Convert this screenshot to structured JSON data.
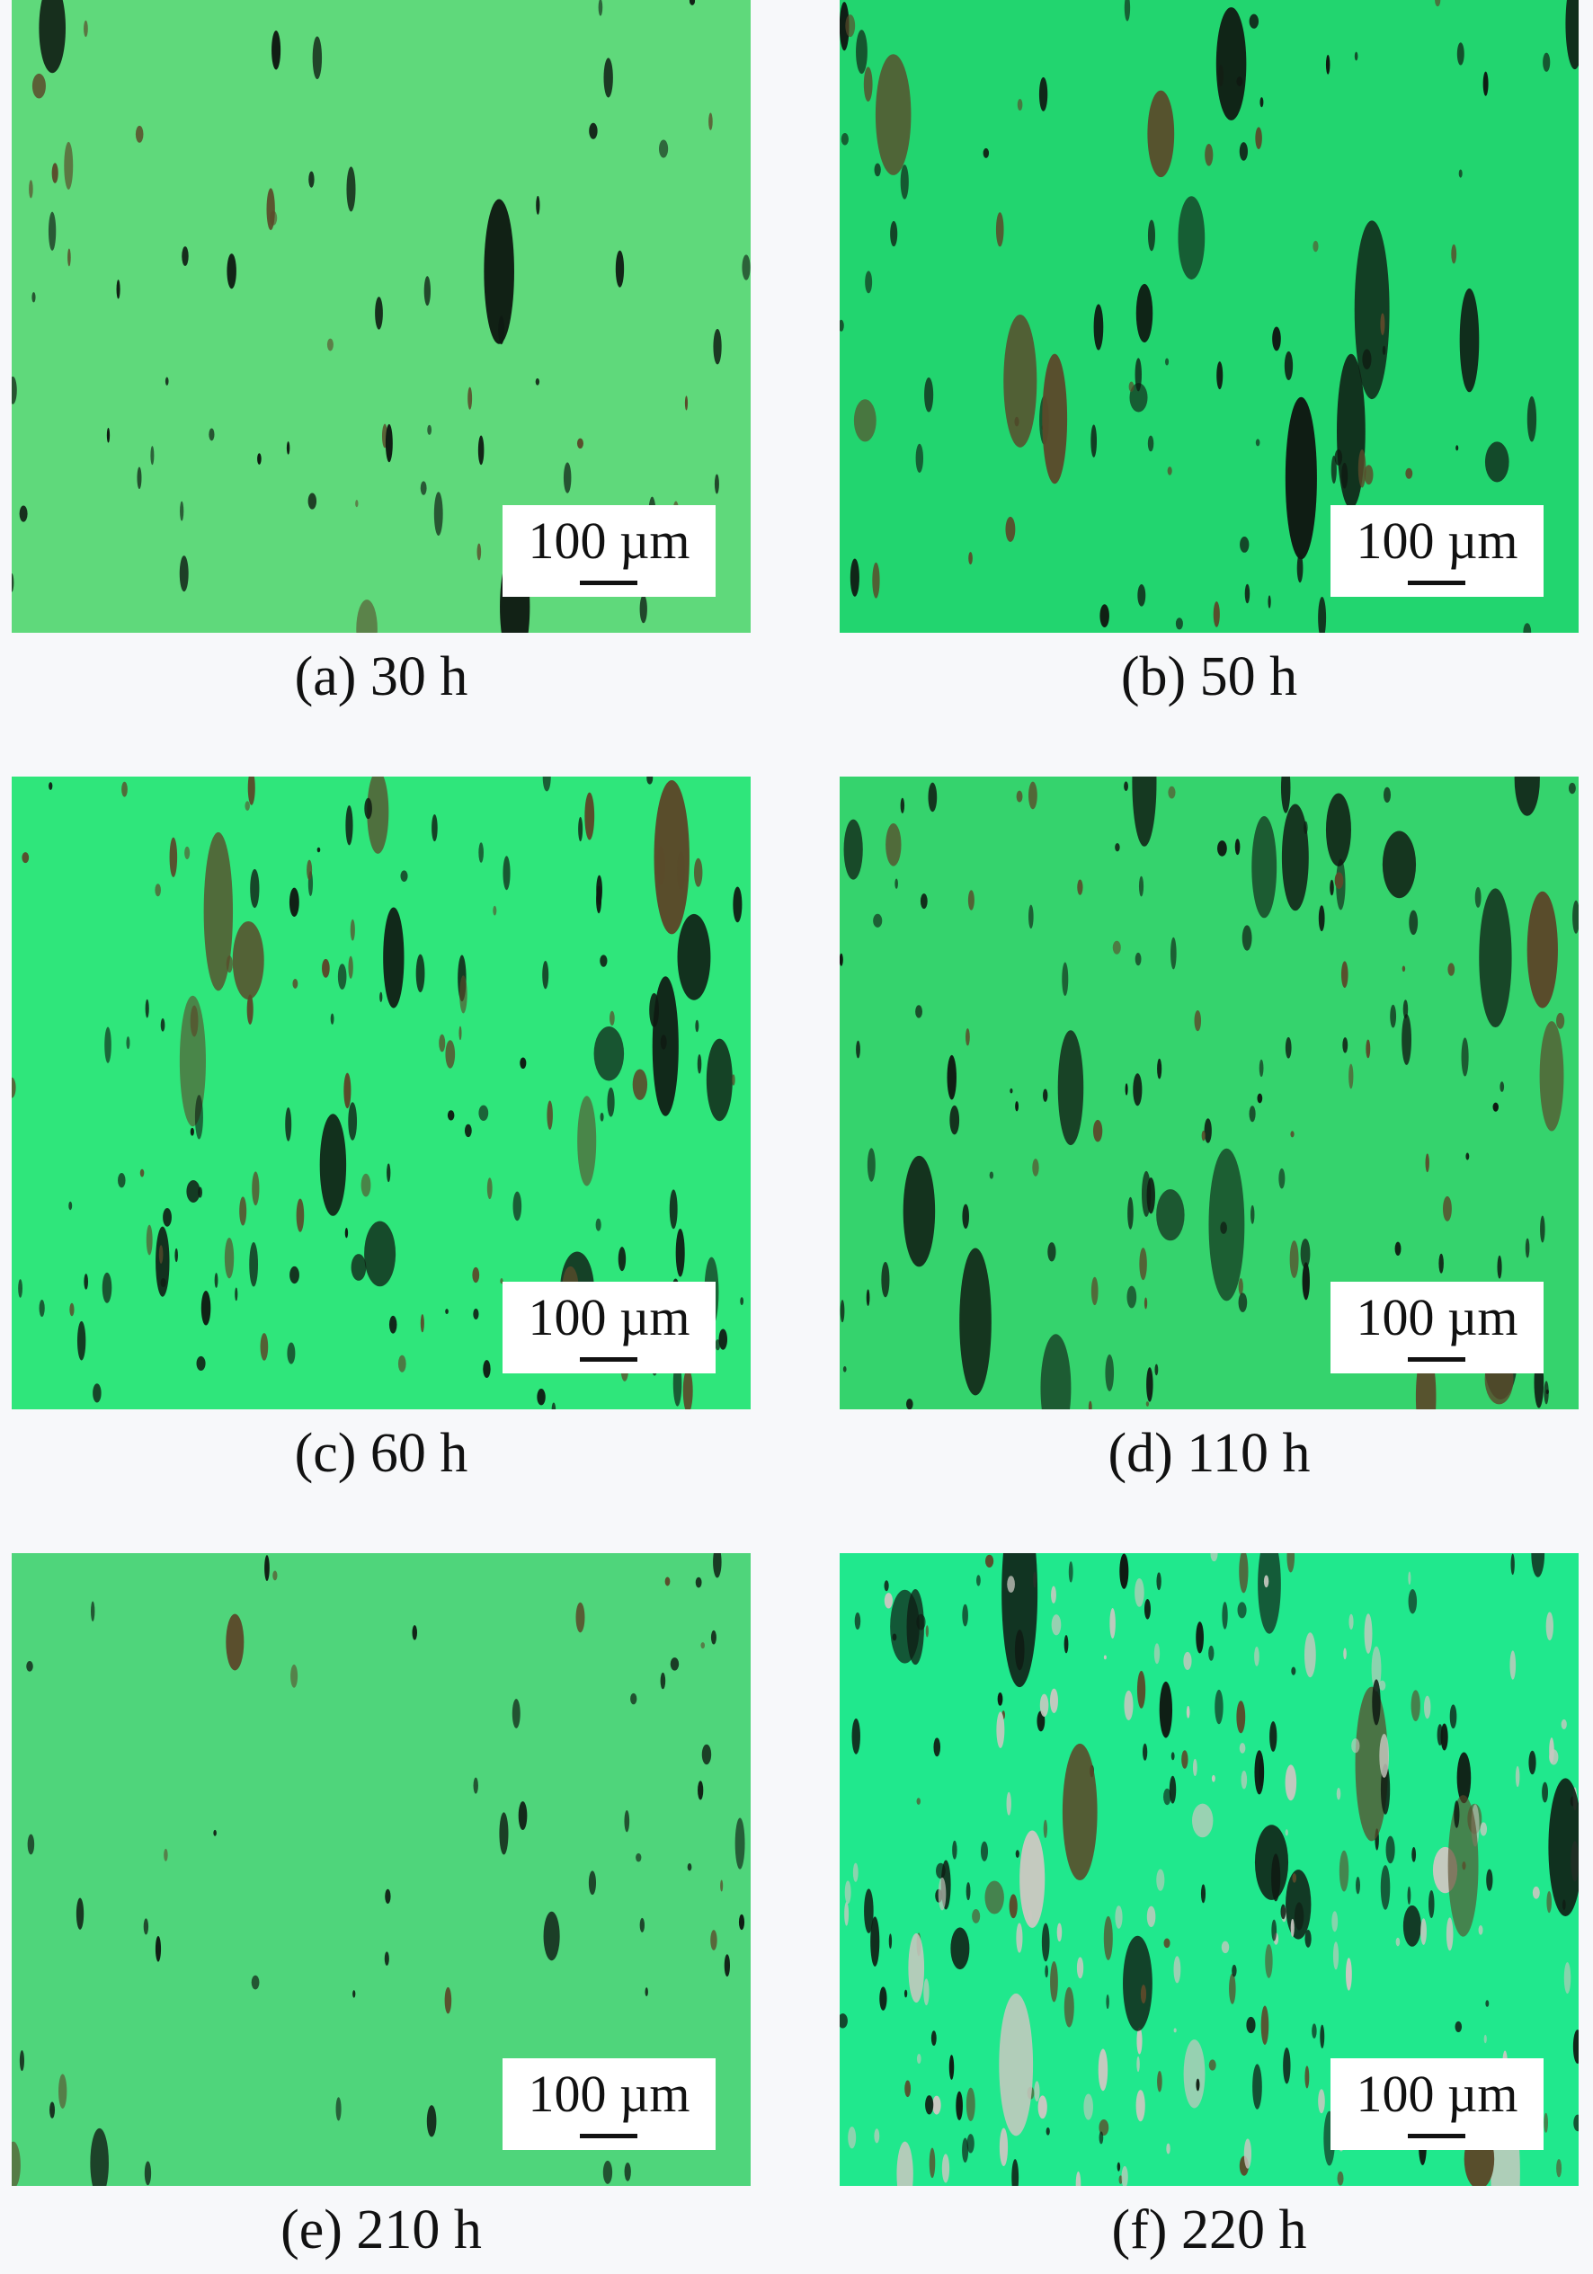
{
  "figure": {
    "panels": [
      {
        "caption": "(a) 30 h",
        "scale_bar": "100 µm"
      },
      {
        "caption": "(b) 50 h",
        "scale_bar": "100 µm"
      },
      {
        "caption": "(c) 60 h",
        "scale_bar": "100 µm"
      },
      {
        "caption": "(d) 110 h",
        "scale_bar": "100 µm"
      },
      {
        "caption": "(e) 210 h",
        "scale_bar": "100 µm"
      },
      {
        "caption": "(f) 220 h",
        "scale_bar": "100 µm"
      }
    ]
  }
}
